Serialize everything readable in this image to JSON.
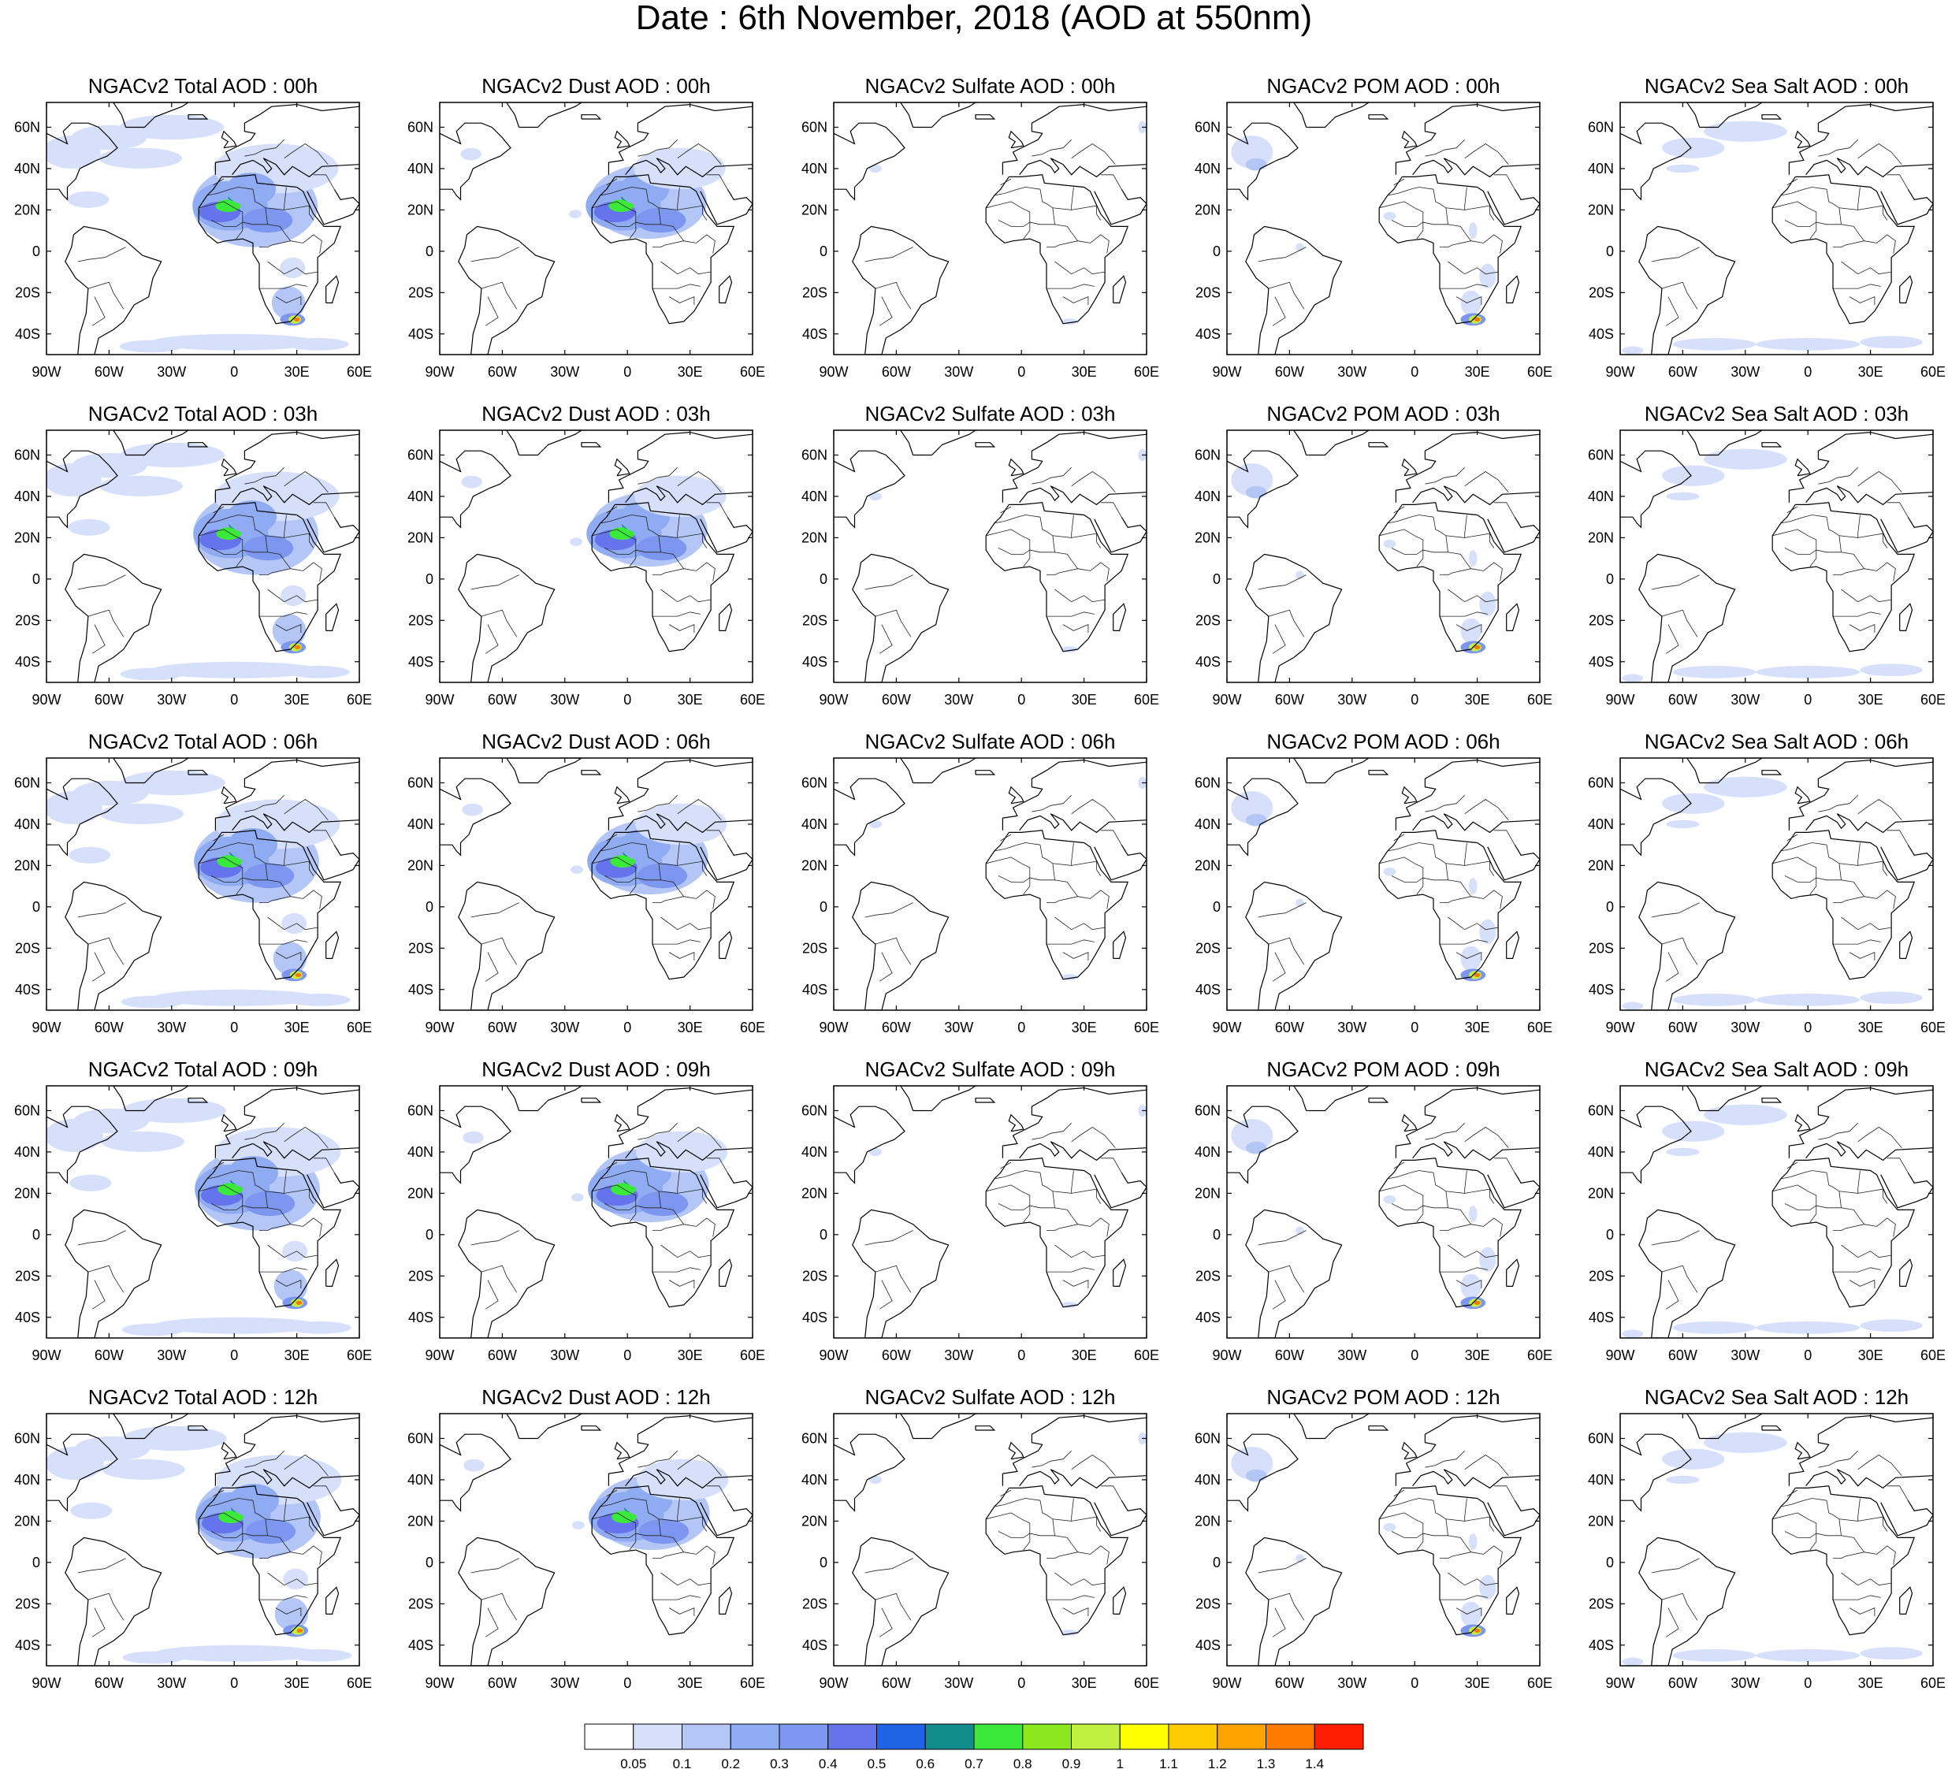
{
  "title": "Date : 6th November, 2018 (AOD at 550nm)",
  "columns": [
    {
      "species": "total",
      "titles": [
        "NGACv2 Total AOD : 00h",
        "NGACv2 Total AOD : 03h",
        "NGACv2 Total AOD : 06h",
        "NGACv2 Total AOD : 09h",
        "NGACv2 Total AOD  : 12h"
      ]
    },
    {
      "species": "dust",
      "titles": [
        "NGACv2 Dust AOD : 00h",
        "NGACv2 Dust AOD : 03h",
        "NGACv2 Dust AOD : 06h",
        "NGACv2 Dust AOD : 09h",
        "NGACv2 Dust AOD : 12h"
      ]
    },
    {
      "species": "sulfate",
      "titles": [
        "NGACv2 Sulfate AOD : 00h",
        "NGACv2 Sulfate AOD : 03h",
        "NGACv2 Sulfate AOD : 06h",
        "NGACv2 Sulfate AOD : 09h",
        "NGACv2 Sulfate AOD : 12h"
      ]
    },
    {
      "species": "pom",
      "titles": [
        "NGACv2 POM AOD : 00h",
        "NGACv2 POM AOD : 03h",
        "NGACv2 POM AOD : 06h",
        "NGACv2 POM AOD : 09h",
        "NGACv2 POM  AOD : 12h"
      ]
    },
    {
      "species": "seasalt",
      "titles": [
        "NGACv2 Sea Salt AOD : 00h",
        "NGACv2 Sea Salt AOD : 03h",
        "NGACv2 Sea Salt AOD : 06h",
        "NGACv2 Sea Salt  AOD : 09h",
        "NGACv2 Sea Salt  AOD : 12h"
      ]
    }
  ],
  "map_extent": {
    "lon": [
      -90,
      60
    ],
    "lat": [
      -50,
      72
    ]
  },
  "lon_ticks": [
    "90W",
    "60W",
    "30W",
    "0",
    "30E",
    "60E"
  ],
  "lat_ticks": [
    "60N",
    "40N",
    "20N",
    "0",
    "20S",
    "40S"
  ],
  "colorbar": {
    "colors": [
      "#ffffff",
      "#d6e0fb",
      "#b3c6f6",
      "#8fabf2",
      "#7d97f0",
      "#6573ec",
      "#1f63e6",
      "#138c8c",
      "#3be93b",
      "#8ce81e",
      "#c1f042",
      "#ffff00",
      "#ffca00",
      "#ffa300",
      "#ff7c00",
      "#ff1d00"
    ],
    "labels": [
      "0.05",
      "0.1",
      "0.2",
      "0.3",
      "0.4",
      "0.5",
      "0.6",
      "0.7",
      "0.8",
      "0.9",
      "1",
      "1.1",
      "1.2",
      "1.3",
      "1.4"
    ]
  }
}
